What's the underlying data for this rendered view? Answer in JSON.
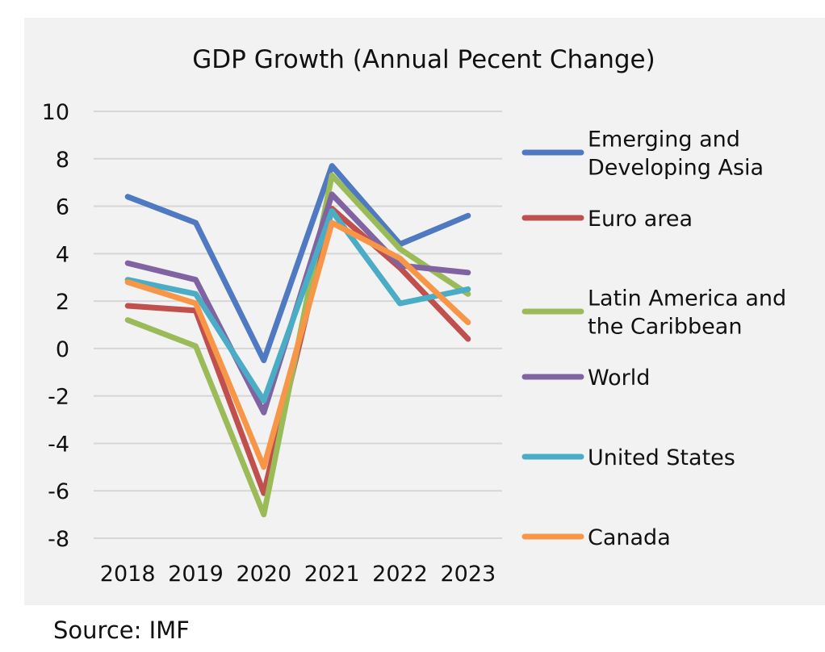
{
  "chart_data": {
    "type": "line",
    "title": "GDP Growth (Annual Pecent Change)",
    "xlabel": "",
    "ylabel": "",
    "categories": [
      "2018",
      "2019",
      "2020",
      "2021",
      "2022",
      "2023"
    ],
    "ylim": [
      -8,
      10
    ],
    "yticks": [
      10,
      8,
      6,
      4,
      2,
      0,
      -2,
      -4,
      -6,
      -8
    ],
    "grid": true,
    "legend_position": "right",
    "series": [
      {
        "name": "Emerging and Developing Asia",
        "label_lines": [
          "Emerging and",
          "Developing Asia"
        ],
        "color": "#4f7ac2",
        "values": [
          6.4,
          5.3,
          -0.5,
          7.7,
          4.4,
          5.6
        ]
      },
      {
        "name": "Euro area",
        "label_lines": [
          "Euro area"
        ],
        "color": "#c0504d",
        "values": [
          1.8,
          1.6,
          -6.1,
          5.9,
          3.4,
          0.4
        ]
      },
      {
        "name": "Latin America and the Caribbean",
        "label_lines": [
          "Latin America and",
          "the Caribbean"
        ],
        "color": "#9bbb59",
        "values": [
          1.2,
          0.1,
          -7.0,
          7.3,
          4.2,
          2.3
        ]
      },
      {
        "name": "World",
        "label_lines": [
          "World"
        ],
        "color": "#8064a2",
        "values": [
          3.6,
          2.9,
          -2.7,
          6.5,
          3.5,
          3.2
        ]
      },
      {
        "name": "United States",
        "label_lines": [
          "United States"
        ],
        "color": "#4bacc6",
        "values": [
          2.9,
          2.3,
          -2.2,
          5.8,
          1.9,
          2.5
        ]
      },
      {
        "name": "Canada",
        "label_lines": [
          "Canada"
        ],
        "color": "#f79646",
        "values": [
          2.8,
          1.9,
          -5.0,
          5.3,
          3.8,
          1.1
        ]
      }
    ]
  },
  "source": "Source: IMF"
}
